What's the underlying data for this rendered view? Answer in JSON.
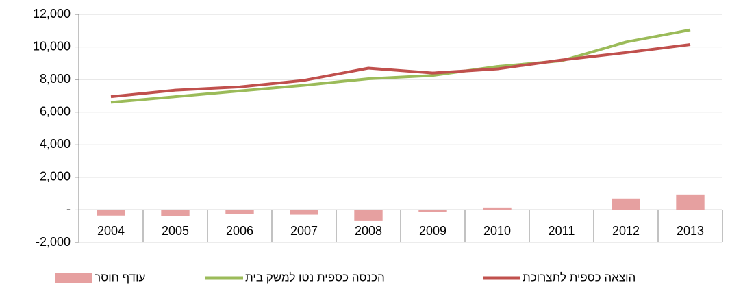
{
  "chart_data": {
    "type": "combo",
    "categories": [
      "2004",
      "2005",
      "2006",
      "2007",
      "2008",
      "2009",
      "2010",
      "2011",
      "2012",
      "2013"
    ],
    "series": [
      {
        "name": "עודף חוסר",
        "type": "bar",
        "color": "#e6a0a0",
        "values": [
          -350,
          -400,
          -250,
          -300,
          -650,
          -150,
          150,
          0,
          700,
          950
        ]
      },
      {
        "name": "הכנסה כספית נטו למשק בית",
        "type": "line",
        "color": "#9bbb59",
        "values": [
          6600,
          6950,
          7300,
          7650,
          8050,
          8250,
          8800,
          9150,
          10300,
          11050
        ]
      },
      {
        "name": "הוצאה כספית לתצרוכת",
        "type": "line",
        "color": "#c0504d",
        "values": [
          6950,
          7350,
          7550,
          7950,
          8700,
          8400,
          8650,
          9200,
          9650,
          10150
        ]
      }
    ],
    "ylim": [
      -2000,
      12000
    ],
    "yticks": [
      {
        "value": -2000,
        "label": "-2,000"
      },
      {
        "value": 0,
        "label": "-"
      },
      {
        "value": 2000,
        "label": "2,000"
      },
      {
        "value": 4000,
        "label": "4,000"
      },
      {
        "value": 6000,
        "label": "6,000"
      },
      {
        "value": 8000,
        "label": "8,000"
      },
      {
        "value": 10000,
        "label": "10,000"
      },
      {
        "value": 12000,
        "label": "12,000"
      }
    ],
    "grid": true
  }
}
